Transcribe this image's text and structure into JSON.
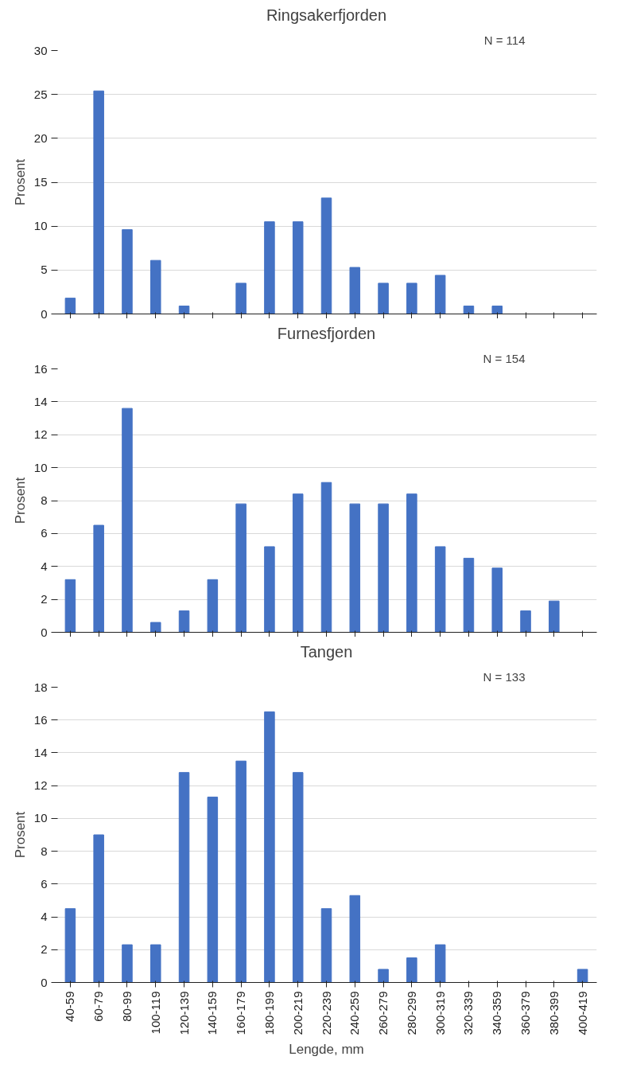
{
  "chart_data": [
    {
      "type": "bar",
      "title": "Ringsakerfjorden",
      "ylabel": "Prosent",
      "annotations": [
        "N = 114"
      ],
      "categories": [
        null,
        null,
        null,
        null,
        null,
        null,
        null,
        null,
        null,
        null,
        null,
        null,
        null,
        null,
        null,
        null,
        null,
        null,
        null
      ],
      "values": [
        1.8,
        25.4,
        9.6,
        6.1,
        0.9,
        0,
        3.5,
        10.5,
        10.5,
        13.2,
        5.3,
        3.5,
        3.5,
        4.4,
        0.9,
        0.9,
        0,
        0,
        0
      ],
      "color": "#4472c4",
      "ylim": [
        0,
        30
      ],
      "yticks": [
        0,
        5,
        10,
        15,
        20,
        25,
        30
      ],
      "grid": "y",
      "tick_labels": "y"
    },
    {
      "type": "bar",
      "title": "Furnesfjorden",
      "ylabel": "Prosent",
      "annotations": [
        "N = 154"
      ],
      "categories": [
        null,
        null,
        null,
        null,
        null,
        null,
        null,
        null,
        null,
        null,
        null,
        null,
        null,
        null,
        null,
        null,
        null,
        null,
        null
      ],
      "values": [
        3.2,
        6.5,
        13.6,
        0.6,
        1.3,
        3.2,
        7.8,
        5.2,
        8.4,
        9.1,
        7.8,
        7.8,
        8.4,
        5.2,
        4.5,
        3.9,
        1.3,
        1.9,
        0
      ],
      "color": "#4472c4",
      "ylim": [
        0,
        16
      ],
      "yticks": [
        0,
        2,
        4,
        6,
        8,
        10,
        12,
        14,
        16
      ],
      "grid": "y",
      "tick_labels": "y"
    },
    {
      "type": "bar",
      "title": "Tangen",
      "ylabel": "Prosent",
      "xlabel": "Lengde, mm",
      "annotations": [
        "N = 133"
      ],
      "categories": [
        "40-59",
        "60-79",
        "80-99",
        "100-119",
        "120-139",
        "140-159",
        "160-179",
        "180-199",
        "200-219",
        "220-239",
        "240-259",
        "260-279",
        "280-299",
        "300-319",
        "320-339",
        "340-359",
        "360-379",
        "380-399",
        "400-419"
      ],
      "values": [
        4.5,
        9.0,
        2.3,
        2.3,
        12.8,
        11.3,
        13.5,
        16.5,
        12.8,
        4.5,
        5.3,
        0.8,
        1.5,
        2.3,
        0,
        0,
        0,
        0,
        0.8
      ],
      "color": "#4472c4",
      "ylim": [
        0,
        18
      ],
      "yticks": [
        0,
        2,
        4,
        6,
        8,
        10,
        12,
        14,
        16,
        18
      ],
      "grid": "y"
    }
  ]
}
